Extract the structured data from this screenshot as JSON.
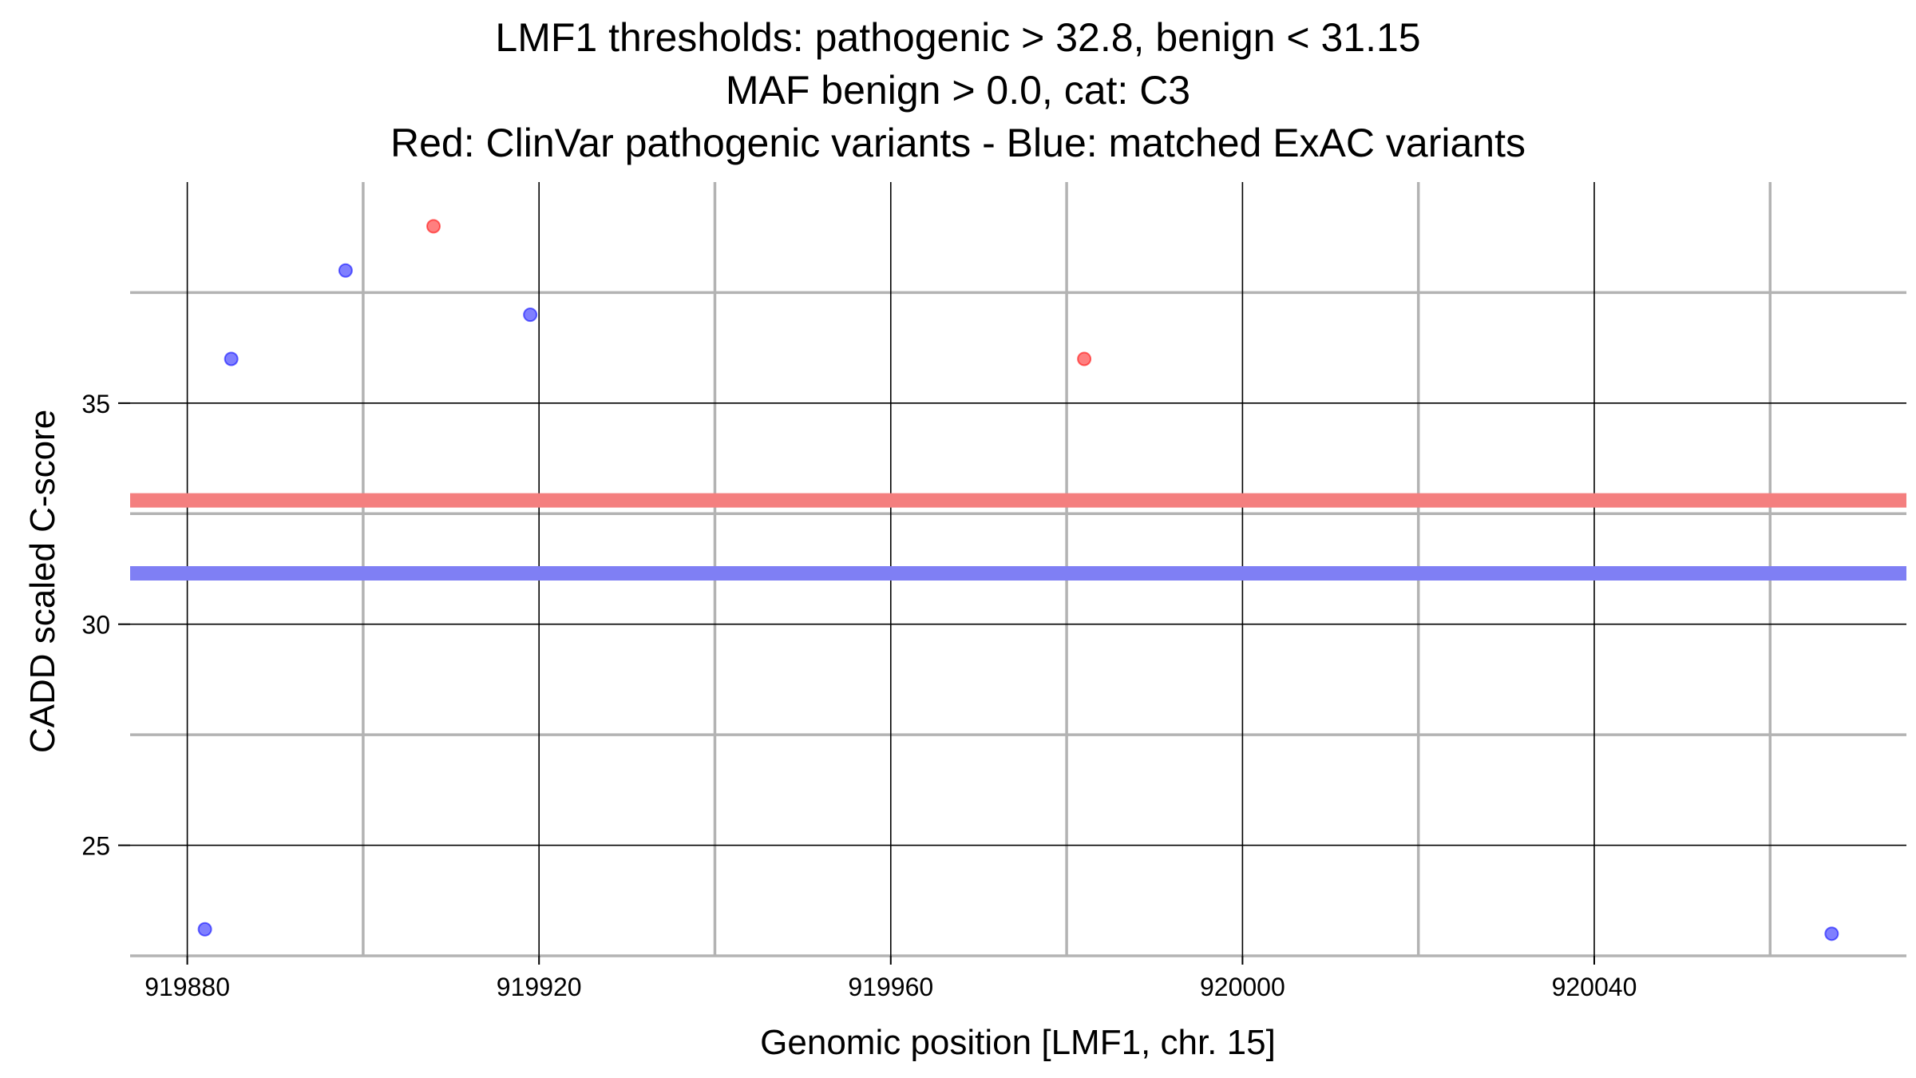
{
  "chart_data": {
    "type": "scatter",
    "title_lines": [
      "LMF1 thresholds: pathogenic > 32.8, benign < 31.15",
      "MAF benign > 0.0, cat: C3",
      "Red: ClinVar pathogenic variants - Blue: matched ExAC variants"
    ],
    "xlabel": "Genomic position [LMF1, chr. 15]",
    "ylabel": "CADD scaled C-score",
    "xlim": [
      919873.5,
      920075.5
    ],
    "ylim": [
      22.5,
      40.0
    ],
    "x_major_ticks": [
      919880,
      919920,
      919960,
      920000,
      920040
    ],
    "x_tick_labels": [
      "919880",
      "919920",
      "919960",
      "920000",
      "920040"
    ],
    "x_minor_ticks": [
      919900,
      919940,
      919980,
      920020,
      920060
    ],
    "y_major_ticks": [
      25,
      30,
      35
    ],
    "y_tick_labels": [
      "25",
      "30",
      "35"
    ],
    "y_minor_ticks": [
      22.5,
      27.5,
      32.5,
      37.5
    ],
    "grid": true,
    "thresholds": [
      {
        "name": "pathogenic",
        "value": 32.8,
        "color": "#f47f7f"
      },
      {
        "name": "benign",
        "value": 31.15,
        "color": "#7f7ff4"
      }
    ],
    "series": [
      {
        "name": "ClinVar pathogenic variants",
        "color": "#ff0000",
        "points": [
          {
            "x": 919908,
            "y": 39.0
          },
          {
            "x": 919982,
            "y": 36.0
          }
        ]
      },
      {
        "name": "matched ExAC variants",
        "color": "#0000ff",
        "points": [
          {
            "x": 919882,
            "y": 23.1
          },
          {
            "x": 919885,
            "y": 36.0
          },
          {
            "x": 919898,
            "y": 38.0
          },
          {
            "x": 919919,
            "y": 37.0
          },
          {
            "x": 920067,
            "y": 23.0
          }
        ]
      }
    ]
  }
}
